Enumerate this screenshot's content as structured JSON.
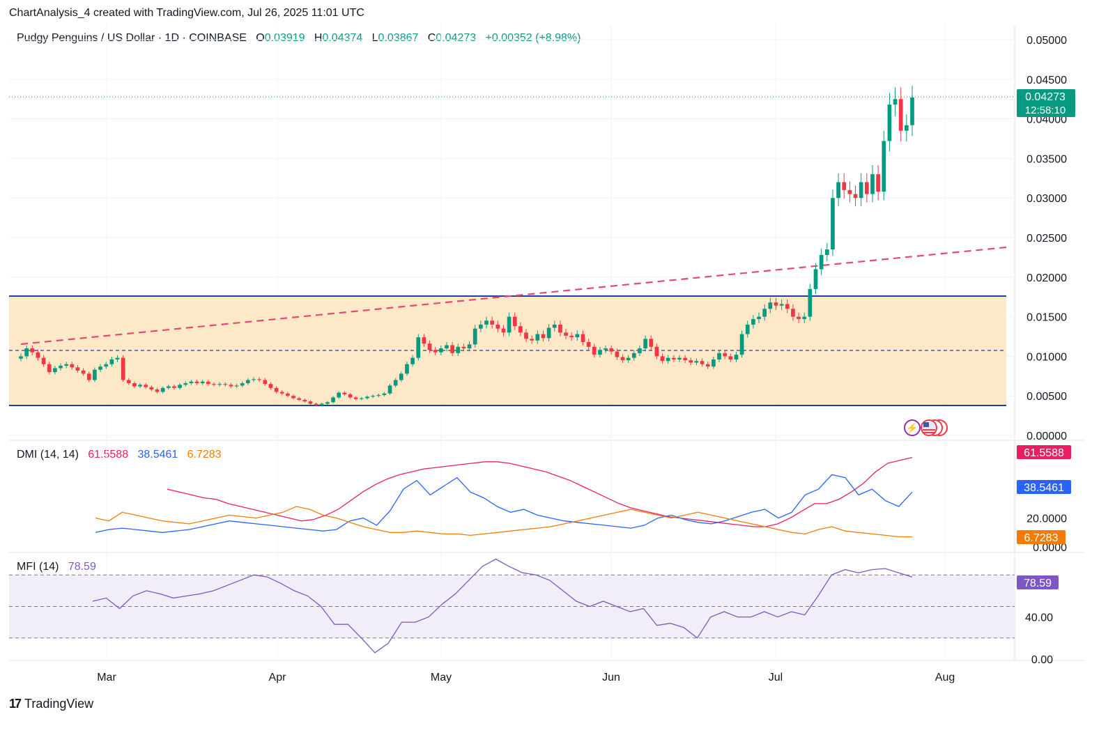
{
  "header": {
    "attribution": "ChartAnalysis_4 created with TradingView.com, Jul 26, 2025 11:01 UTC"
  },
  "symbol": {
    "name": "Pudgy Penguins / US Dollar · 1D · COINBASE",
    "o_label": "O",
    "o": "0.03919",
    "h_label": "H",
    "h": "0.04374",
    "l_label": "L",
    "l": "0.03867",
    "c_label": "C",
    "c": "0.04273",
    "change": "+0.00352 (+8.98%)"
  },
  "price_badge": {
    "price": "0.04273",
    "countdown": "12:58:10"
  },
  "colors": {
    "up": "#089981",
    "down": "#f23645",
    "zone": "#fde9c8",
    "zone_line": "#1e3ea8",
    "trend": "#e8457a",
    "dmi_adx": "#e91e63",
    "dmi_plus": "#2962ff",
    "dmi_minus": "#f57c00",
    "mfi": "#7e57c2"
  },
  "dmi": {
    "label": "DMI (14, 14)",
    "adx": "61.5588",
    "plus_di": "38.5461",
    "minus_di": "6.7283"
  },
  "mfi": {
    "label": "MFI (14)",
    "value": "78.59"
  },
  "footer": {
    "brand": "TradingView",
    "logo": "17"
  },
  "chart_data": [
    {
      "type": "candlestick",
      "title": "Pudgy Penguins / US Dollar · 1D · COINBASE",
      "x_ticks": [
        "Mar",
        "Apr",
        "May",
        "Jun",
        "Jul",
        "Aug"
      ],
      "y_ticks": [
        "0.05000",
        "0.04500",
        "0.04000",
        "0.03500",
        "0.03000",
        "0.02500",
        "0.02000",
        "0.01500",
        "0.01000",
        "0.00500",
        "0.00000"
      ],
      "ylim": [
        0,
        0.05
      ],
      "close_series": [
        0.01,
        0.011,
        0.0105,
        0.0098,
        0.009,
        0.008,
        0.0085,
        0.0088,
        0.009,
        0.0086,
        0.0082,
        0.0078,
        0.007,
        0.0083,
        0.0087,
        0.009,
        0.0096,
        0.0098,
        0.007,
        0.0066,
        0.0062,
        0.0064,
        0.0061,
        0.0058,
        0.0055,
        0.006,
        0.0062,
        0.006,
        0.0064,
        0.0066,
        0.0068,
        0.0066,
        0.0068,
        0.0065,
        0.0064,
        0.0065,
        0.0064,
        0.0062,
        0.0063,
        0.0066,
        0.007,
        0.0071,
        0.007,
        0.0065,
        0.006,
        0.0055,
        0.0053,
        0.005,
        0.0047,
        0.0045,
        0.0043,
        0.004,
        0.0038,
        0.004,
        0.0042,
        0.0048,
        0.0054,
        0.0052,
        0.0048,
        0.0046,
        0.0047,
        0.0049,
        0.005,
        0.0051,
        0.0053,
        0.0063,
        0.007,
        0.0078,
        0.009,
        0.0098,
        0.0124,
        0.0116,
        0.0108,
        0.0105,
        0.011,
        0.0114,
        0.0104,
        0.0112,
        0.011,
        0.0115,
        0.0135,
        0.014,
        0.0145,
        0.014,
        0.0135,
        0.013,
        0.015,
        0.0138,
        0.013,
        0.0122,
        0.012,
        0.0128,
        0.0123,
        0.0136,
        0.014,
        0.013,
        0.0126,
        0.0124,
        0.0128,
        0.0118,
        0.0112,
        0.0102,
        0.0108,
        0.011,
        0.0106,
        0.0099,
        0.0095,
        0.0098,
        0.0104,
        0.011,
        0.0122,
        0.0112,
        0.01,
        0.0094,
        0.0098,
        0.0096,
        0.0098,
        0.0095,
        0.0092,
        0.0094,
        0.009,
        0.0087,
        0.0096,
        0.0104,
        0.01,
        0.0096,
        0.0102,
        0.0128,
        0.014,
        0.0147,
        0.015,
        0.016,
        0.0168,
        0.0164,
        0.0166,
        0.016,
        0.015,
        0.0147,
        0.015,
        0.0185,
        0.021,
        0.0228,
        0.0235,
        0.03,
        0.032,
        0.031,
        0.0305,
        0.03,
        0.032,
        0.0305,
        0.033,
        0.0308,
        0.0372,
        0.0418,
        0.0425,
        0.0385,
        0.0392,
        0.0427
      ],
      "horizontal_levels": [
        0.0174,
        0.0106,
        0.0037
      ],
      "trendline": [
        {
          "date": "Feb",
          "value": 0.0115
        },
        {
          "date": "Aug",
          "value": 0.0236
        }
      ]
    },
    {
      "type": "line",
      "title": "DMI (14, 14)",
      "y_ticks": [
        "20.0000",
        "0.0000"
      ],
      "series": [
        {
          "name": "ADX",
          "last": 61.5588,
          "values": [
            40,
            38,
            36,
            34,
            33,
            30,
            28,
            26,
            24,
            22,
            20,
            18,
            19,
            22,
            26,
            32,
            38,
            43,
            47,
            50,
            52,
            54,
            55,
            56,
            57,
            58,
            59,
            59,
            58,
            56,
            54,
            52,
            49,
            46,
            42,
            38,
            34,
            30,
            27,
            25,
            23,
            21,
            20,
            19,
            18,
            17,
            16,
            15,
            14,
            14,
            16,
            20,
            25,
            30,
            30,
            33,
            38,
            44,
            52,
            58,
            60,
            62
          ]
        },
        {
          "name": "+DI",
          "last": 38.5461,
          "values": [
            10,
            12,
            13,
            12,
            11,
            10,
            11,
            12,
            14,
            16,
            18,
            17,
            16,
            15,
            14,
            13,
            12,
            11,
            12,
            18,
            20,
            15,
            25,
            40,
            46,
            36,
            42,
            48,
            38,
            34,
            28,
            24,
            26,
            22,
            20,
            18,
            17,
            16,
            15,
            14,
            13,
            15,
            20,
            22,
            19,
            17,
            16,
            18,
            21,
            24,
            26,
            20,
            24,
            36,
            40,
            50,
            48,
            36,
            40,
            32,
            28,
            38
          ]
        },
        {
          "name": "-DI",
          "last": 6.7283,
          "values": [
            20,
            18,
            24,
            22,
            20,
            18,
            17,
            16,
            18,
            20,
            22,
            21,
            20,
            22,
            24,
            28,
            26,
            22,
            20,
            17,
            14,
            12,
            10,
            10,
            11,
            10,
            9,
            9,
            8,
            9,
            10,
            11,
            12,
            13,
            14,
            16,
            18,
            20,
            22,
            24,
            26,
            24,
            22,
            20,
            22,
            24,
            22,
            20,
            18,
            16,
            14,
            12,
            10,
            9,
            12,
            14,
            11,
            10,
            9,
            8,
            7,
            7
          ]
        }
      ]
    },
    {
      "type": "line",
      "title": "MFI (14)",
      "y_ticks": [
        "40.00",
        "0.00"
      ],
      "ylim": [
        0,
        100
      ],
      "series": [
        {
          "name": "MFI",
          "last": 78.59,
          "values": [
            55,
            58,
            48,
            60,
            65,
            62,
            58,
            60,
            62,
            65,
            70,
            75,
            80,
            78,
            72,
            65,
            60,
            50,
            33,
            33,
            20,
            6,
            15,
            35,
            35,
            40,
            52,
            62,
            75,
            88,
            95,
            88,
            82,
            80,
            75,
            65,
            55,
            50,
            55,
            50,
            45,
            48,
            32,
            34,
            30,
            20,
            40,
            45,
            40,
            40,
            45,
            40,
            45,
            42,
            60,
            80,
            85,
            82,
            85,
            86,
            82,
            78
          ]
        }
      ]
    }
  ]
}
